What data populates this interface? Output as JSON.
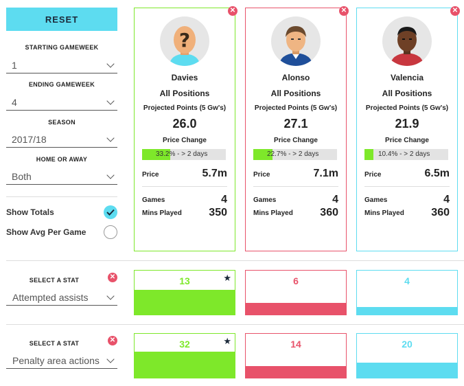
{
  "sidebar": {
    "reset_label": "RESET",
    "starting_gameweek": {
      "label": "STARTING GAMEWEEK",
      "value": "1"
    },
    "ending_gameweek": {
      "label": "ENDING GAMEWEEK",
      "value": "4"
    },
    "season": {
      "label": "SEASON",
      "value": "2017/18"
    },
    "home_or_away": {
      "label": "HOME OR AWAY",
      "value": "Both"
    },
    "show_totals": {
      "label": "Show Totals",
      "checked": true
    },
    "show_avg": {
      "label": "Show Avg Per Game",
      "checked": false
    }
  },
  "players": [
    {
      "name": "Davies",
      "position": "All Positions",
      "projected_label": "Projected Points (5 Gw's)",
      "projected_points": "26.0",
      "price_change_label": "Price Change",
      "price_change_text": "33.2% - > 2 days",
      "price_change_pct": 33.2,
      "price_label": "Price",
      "price": "5.7m",
      "games_label": "Games",
      "games": "4",
      "mins_label": "Mins Played",
      "mins": "350",
      "accent": "#7ee82a",
      "avatar_icon": "unknown-player-icon"
    },
    {
      "name": "Alonso",
      "position": "All Positions",
      "projected_label": "Projected Points (5 Gw's)",
      "projected_points": "27.1",
      "price_change_label": "Price Change",
      "price_change_text": "22.7% - > 2 days",
      "price_change_pct": 22.7,
      "price_label": "Price",
      "price": "7.1m",
      "games_label": "Games",
      "games": "4",
      "mins_label": "Mins Played",
      "mins": "360",
      "accent": "#e8526a",
      "avatar_icon": "player-avatar-icon"
    },
    {
      "name": "Valencia",
      "position": "All Positions",
      "projected_label": "Projected Points (5 Gw's)",
      "projected_points": "21.9",
      "price_change_label": "Price Change",
      "price_change_text": "10.4% - > 2 days",
      "price_change_pct": 10.4,
      "price_label": "Price",
      "price": "6.5m",
      "games_label": "Games",
      "games": "4",
      "mins_label": "Mins Played",
      "mins": "360",
      "accent": "#5ddcf0",
      "avatar_icon": "player-avatar-icon"
    }
  ],
  "stats": [
    {
      "select_label": "SELECT A STAT",
      "value": "Attempted assists",
      "values": [
        "13",
        "6",
        "4"
      ],
      "fractions": [
        0.56,
        0.26,
        0.17
      ],
      "leader_index": 0
    },
    {
      "select_label": "SELECT A STAT",
      "value": "Penalty area actions",
      "values": [
        "32",
        "14",
        "20"
      ],
      "fractions": [
        0.59,
        0.26,
        0.35
      ],
      "leader_index": 0
    }
  ],
  "colors": {
    "accent_cyan": "#5ddcf0",
    "green": "#7ee82a",
    "red": "#e8526a",
    "dark": "#1c2a3a"
  }
}
